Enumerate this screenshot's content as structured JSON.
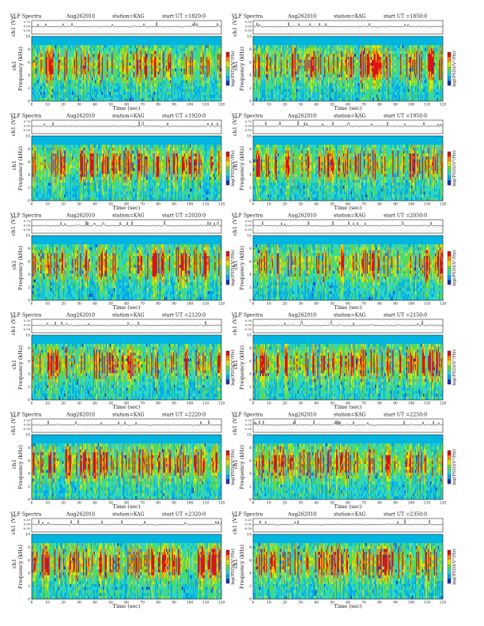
{
  "figure": {
    "title_prefix": "VLF Spectra",
    "date": "Aug262010",
    "station": "station=KAG",
    "start_prefix": "start  UT  =",
    "xlabel": "Time  (sec)",
    "ylabel_freq": "Frequency  (kHz)",
    "ylabel_ch": "ch1",
    "ylabel_wave": "ch1 (V)",
    "colorbar_label": "log(PSD)(V²/Hz)"
  },
  "chart_data": [
    {
      "type": "heatmap",
      "start_time": "1820:0",
      "x_range": [
        0,
        120
      ],
      "y_range": [
        0,
        10
      ],
      "x_ticks": [
        "0",
        "10",
        "20",
        "30",
        "40",
        "50",
        "60",
        "70",
        "80",
        "90",
        "100",
        "110",
        "120"
      ],
      "y_ticks": [
        "0",
        "2",
        "4",
        "6",
        "8",
        "10"
      ],
      "wave_ticks": [
        "0.70",
        "0.00",
        "-0.50"
      ]
    },
    {
      "type": "heatmap",
      "start_time": "1850:0",
      "x_range": [
        0,
        120
      ],
      "y_range": [
        0,
        10
      ],
      "x_ticks": [
        "0",
        "10",
        "20",
        "30",
        "40",
        "50",
        "60",
        "70",
        "80",
        "90",
        "100",
        "110",
        "120"
      ],
      "y_ticks": [
        "0",
        "2",
        "4",
        "6",
        "8",
        "10"
      ],
      "wave_ticks": [
        "0.50",
        "0.00",
        "-0.50"
      ]
    },
    {
      "type": "heatmap",
      "start_time": "1920:0",
      "x_range": [
        0,
        120
      ],
      "y_range": [
        0,
        10
      ],
      "x_ticks": [
        "0",
        "10",
        "20",
        "30",
        "40",
        "50",
        "60",
        "70",
        "80",
        "90",
        "100",
        "110",
        "120"
      ],
      "y_ticks": [
        "0",
        "2",
        "4",
        "6",
        "8",
        "10"
      ],
      "wave_ticks": [
        "0.70",
        "0.00",
        "-0.50"
      ]
    },
    {
      "type": "heatmap",
      "start_time": "1950:0",
      "x_range": [
        0,
        120
      ],
      "y_range": [
        0,
        10
      ],
      "x_ticks": [
        "0",
        "10",
        "20",
        "30",
        "40",
        "50",
        "60",
        "70",
        "80",
        "90",
        "100",
        "110",
        "120"
      ],
      "y_ticks": [
        "0",
        "2",
        "4",
        "6",
        "8",
        "10"
      ],
      "wave_ticks": [
        "0.70",
        "0.00",
        "-0.50"
      ]
    },
    {
      "type": "heatmap",
      "start_time": "2020:0",
      "x_range": [
        0,
        120
      ],
      "y_range": [
        0,
        10
      ],
      "x_ticks": [
        "0",
        "10",
        "20",
        "30",
        "40",
        "50",
        "60",
        "70",
        "80",
        "90",
        "100",
        "110",
        "120"
      ],
      "y_ticks": [
        "0",
        "2",
        "4",
        "6",
        "8",
        "10"
      ],
      "wave_ticks": [
        "0.70",
        "0.00",
        "-0.50"
      ]
    },
    {
      "type": "heatmap",
      "start_time": "2050:0",
      "x_range": [
        0,
        120
      ],
      "y_range": [
        0,
        10
      ],
      "x_ticks": [
        "0",
        "10",
        "20",
        "30",
        "40",
        "50",
        "60",
        "70",
        "80",
        "90",
        "100",
        "110",
        "120"
      ],
      "y_ticks": [
        "0",
        "2",
        "4",
        "6",
        "8",
        "10"
      ],
      "wave_ticks": [
        "0.50",
        "0.00",
        "-0.50"
      ]
    },
    {
      "type": "heatmap",
      "start_time": "2120:0",
      "x_range": [
        0,
        120
      ],
      "y_range": [
        0,
        10
      ],
      "x_ticks": [
        "0",
        "10",
        "20",
        "30",
        "40",
        "50",
        "60",
        "70",
        "80",
        "90",
        "100",
        "110",
        "120"
      ],
      "y_ticks": [
        "0",
        "2",
        "4",
        "6",
        "8",
        "10"
      ],
      "wave_ticks": [
        "0.20",
        "0.00",
        "-0.50"
      ]
    },
    {
      "type": "heatmap",
      "start_time": "2150:0",
      "x_range": [
        0,
        120
      ],
      "y_range": [
        0,
        10
      ],
      "x_ticks": [
        "0",
        "10",
        "20",
        "30",
        "40",
        "50",
        "60",
        "70",
        "80",
        "90",
        "100",
        "110",
        "120"
      ],
      "y_ticks": [
        "0",
        "2",
        "4",
        "6",
        "8",
        "10"
      ],
      "wave_ticks": [
        "0.50",
        "0.00",
        "-0.50"
      ]
    },
    {
      "type": "heatmap",
      "start_time": "2220:0",
      "x_range": [
        0,
        120
      ],
      "y_range": [
        0,
        10
      ],
      "x_ticks": [
        "0",
        "10",
        "20",
        "30",
        "40",
        "50",
        "60",
        "70",
        "80",
        "90",
        "100",
        "110",
        "120"
      ],
      "y_ticks": [
        "0",
        "2",
        "4",
        "6",
        "8",
        "10"
      ],
      "wave_ticks": [
        "0.20",
        "0.00",
        "-0.50"
      ]
    },
    {
      "type": "heatmap",
      "start_time": "2250:0",
      "x_range": [
        0,
        120
      ],
      "y_range": [
        0,
        10
      ],
      "x_ticks": [
        "0",
        "10",
        "20",
        "30",
        "40",
        "50",
        "60",
        "70",
        "80",
        "90",
        "100",
        "110",
        "120"
      ],
      "y_ticks": [
        "0",
        "2",
        "4",
        "6",
        "8",
        "10"
      ],
      "wave_ticks": [
        "0.20",
        "0.00",
        "-0.50"
      ]
    },
    {
      "type": "heatmap",
      "start_time": "2320:0",
      "x_range": [
        0,
        120
      ],
      "y_range": [
        0,
        10
      ],
      "x_ticks": [
        "0",
        "10",
        "20",
        "30",
        "40",
        "50",
        "60",
        "70",
        "80",
        "90",
        "100",
        "110",
        "120"
      ],
      "y_ticks": [
        "0",
        "2",
        "4",
        "6",
        "8",
        "10"
      ],
      "wave_ticks": [
        "0.20",
        "0.00",
        "-0.50"
      ]
    },
    {
      "type": "heatmap",
      "start_time": "2350:0",
      "x_range": [
        0,
        120
      ],
      "y_range": [
        0,
        10
      ],
      "x_ticks": [
        "0",
        "10",
        "20",
        "30",
        "40",
        "50",
        "60",
        "70",
        "80",
        "90",
        "100",
        "110",
        "120"
      ],
      "y_ticks": [
        "0",
        "2",
        "4",
        "6",
        "8",
        "10"
      ],
      "wave_ticks": [
        "0.20",
        "0.00",
        "-0.50"
      ]
    }
  ],
  "colormap": [
    "#1a2fbf",
    "#00a9e8",
    "#2fd7c8",
    "#5fdc3c",
    "#e6e600",
    "#ff8a00",
    "#e01010"
  ]
}
